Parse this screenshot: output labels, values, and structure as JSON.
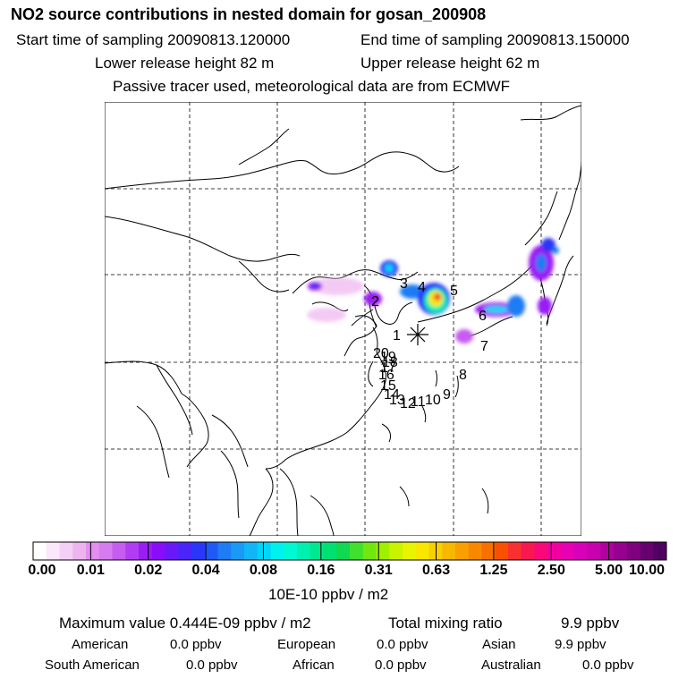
{
  "header": {
    "title": "NO2 source contributions in nested domain for gosan_200908",
    "start_label": "Start time of sampling 20090813.120000",
    "end_label": "End time of sampling 20090813.150000",
    "lower_label": "Lower release height   82 m",
    "upper_label": "Upper release height   62 m",
    "tracer_label": "Passive tracer used, meteorological data are from ECMWF"
  },
  "map": {
    "receptor_label": "1",
    "source_labels": [
      "2",
      "3",
      "4",
      "5",
      "6",
      "7",
      "8",
      "9",
      "10",
      "11",
      "12",
      "13",
      "14",
      "15",
      "16",
      "17",
      "18",
      "19",
      "20"
    ]
  },
  "colorbar": {
    "tick_labels": [
      "0.00",
      "0.01",
      "0.02",
      "0.04",
      "0.08",
      "0.16",
      "0.31",
      "0.63",
      "1.25",
      "2.50",
      "5.00",
      "10.00"
    ],
    "unit": "10E-10 ppbv / m2",
    "colors": [
      "#ffffff",
      "#fbe8fb",
      "#f5d0f5",
      "#eeb4f0",
      "#e38ef0",
      "#d67cf0",
      "#c65cf0",
      "#b23cf2",
      "#9a1ef4",
      "#8a0cf8",
      "#6a18f8",
      "#4a24f8",
      "#2a36f8",
      "#1f5af6",
      "#1f7cf4",
      "#1a9af4",
      "#12b6f6",
      "#00d4f8",
      "#00f0f0",
      "#00f8d2",
      "#00f0b0",
      "#00e88e",
      "#00e070",
      "#10d850",
      "#40e030",
      "#70e810",
      "#a0f000",
      "#c8f400",
      "#e8f400",
      "#f8e800",
      "#f8d000",
      "#f8b800",
      "#f8a000",
      "#f88800",
      "#f87000",
      "#f85000",
      "#f83030",
      "#f81850",
      "#f80878",
      "#f000a0",
      "#e800b4",
      "#d800b8",
      "#c800b0",
      "#b000a0",
      "#980090",
      "#800080",
      "#680070",
      "#500060"
    ]
  },
  "stats": {
    "max_label": "Maximum value  0.444E-09 ppbv / m2",
    "total_label": "Total mixing ratio",
    "total_value": "9.9 ppbv",
    "american_label": "American",
    "american_value": "0.0 ppbv",
    "european_label": "European",
    "european_value": "0.0 ppbv",
    "asian_label": "Asian",
    "asian_value": "9.9 ppbv",
    "south_american_label": "South American",
    "south_american_value": "0.0 ppbv",
    "african_label": "African",
    "african_value": "0.0 ppbv",
    "australian_label": "Australian",
    "australian_value": "0.0 ppbv"
  }
}
